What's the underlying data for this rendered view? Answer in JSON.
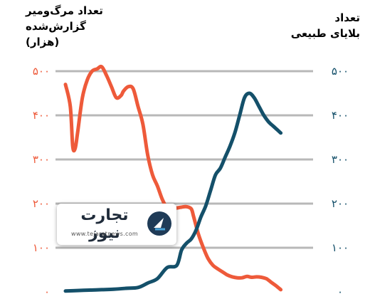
{
  "chart_data": {
    "type": "line",
    "left_axis": {
      "title_line1": "تعداد مرگ‌ومیر گزارش‌شده",
      "title_line2": "(هزار)",
      "ticks": [
        "۰",
        "۱۰۰",
        "۲۰۰",
        "۳۰۰",
        "۴۰۰",
        "۵۰۰"
      ],
      "ylim": [
        0,
        500
      ],
      "color": "#ee5a3a"
    },
    "right_axis": {
      "title_line1": "تعداد",
      "title_line2": "بلایای طبیعی",
      "ticks": [
        "۰",
        "۱۰۰",
        "۲۰۰",
        "۳۰۰",
        "۴۰۰",
        "۵۰۰"
      ],
      "ylim": [
        0,
        500
      ],
      "color": "#14506a"
    },
    "x_range": [
      0,
      100
    ],
    "grid": true,
    "series": [
      {
        "axis": "left",
        "color": "#ee5a3a",
        "x": [
          0,
          2,
          3,
          4,
          5,
          7,
          9,
          11,
          13,
          15,
          17,
          19,
          21,
          23,
          24,
          26,
          28,
          30,
          32,
          34,
          36,
          38,
          40,
          42,
          44,
          46,
          48,
          50,
          52,
          53,
          55,
          57,
          59,
          61,
          63,
          65,
          67,
          69,
          71,
          73,
          75,
          77,
          79,
          81,
          83,
          85,
          87,
          89
        ],
        "values": [
          470,
          420,
          330,
          325,
          360,
          440,
          480,
          500,
          505,
          510,
          490,
          465,
          440,
          445,
          455,
          465,
          460,
          420,
          380,
          310,
          265,
          240,
          210,
          190,
          188,
          190,
          192,
          193,
          188,
          170,
          130,
          100,
          75,
          60,
          52,
          45,
          38,
          34,
          32,
          32,
          35,
          33,
          34,
          33,
          30,
          22,
          14,
          5
        ]
      },
      {
        "axis": "right",
        "color": "#14506a",
        "x": [
          0,
          5,
          10,
          15,
          20,
          25,
          30,
          34,
          38,
          42,
          46,
          48,
          50,
          52,
          54,
          56,
          58,
          60,
          62,
          64,
          66,
          68,
          70,
          72,
          74,
          76,
          78,
          80,
          82,
          84,
          86,
          87,
          88,
          89
        ],
        "values": [
          2,
          3,
          4,
          5,
          6,
          8,
          10,
          20,
          30,
          55,
          60,
          95,
          110,
          120,
          140,
          170,
          195,
          230,
          265,
          280,
          305,
          330,
          360,
          400,
          440,
          450,
          440,
          420,
          400,
          385,
          375,
          370,
          365,
          360
        ]
      }
    ]
  },
  "logo": {
    "name": "تجارت نیوز",
    "url": "www.tejaratnews.com"
  }
}
